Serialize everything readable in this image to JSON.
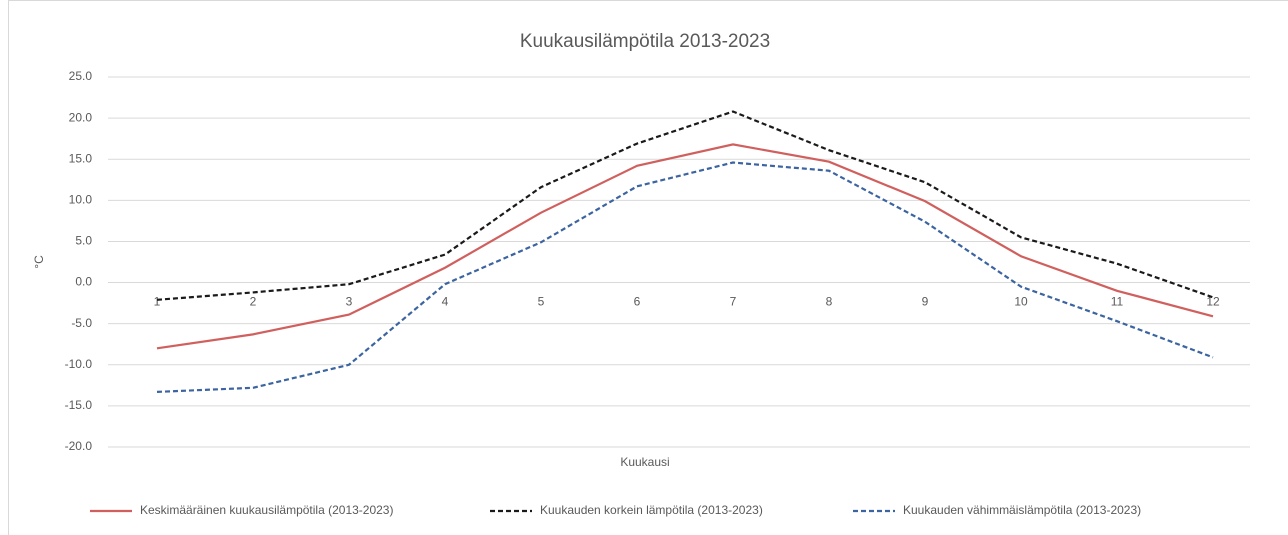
{
  "chart_data": {
    "type": "line",
    "title": "Kuukausilämpötila 2013-2023",
    "x_label": "Kuukausi",
    "y_label": "°C",
    "categories": [
      "1",
      "2",
      "3",
      "4",
      "5",
      "6",
      "7",
      "8",
      "9",
      "10",
      "11",
      "12"
    ],
    "series": [
      {
        "name": "Keskimääräinen kuukausilämpötila (2013-2023)",
        "color": "#d0605e",
        "dashed": false,
        "values": [
          -8.0,
          -6.3,
          -3.9,
          1.8,
          8.5,
          14.2,
          16.8,
          14.7,
          9.9,
          3.2,
          -1.0,
          -4.1
        ]
      },
      {
        "name": "Kuukauden korkein lämpötila (2013-2023)",
        "color": "#1a1a1a",
        "dashed": true,
        "values": [
          -2.1,
          -1.2,
          -0.2,
          3.4,
          11.6,
          16.9,
          20.8,
          16.1,
          12.2,
          5.5,
          2.3,
          -1.8
        ]
      },
      {
        "name": "Kuukauden vähimmäislämpötila (2013-2023)",
        "color": "#3b64a0",
        "dashed": true,
        "values": [
          -13.3,
          -12.8,
          -10.0,
          -0.2,
          4.9,
          11.7,
          14.6,
          13.6,
          7.4,
          -0.5,
          -4.7,
          -9.1
        ]
      }
    ],
    "ylim": [
      -20,
      25
    ],
    "yticks": [
      {
        "value": -20,
        "label": "-20.0"
      },
      {
        "value": -15,
        "label": "-15.0"
      },
      {
        "value": -10,
        "label": "-10.0"
      },
      {
        "value": -5,
        "label": "-5.0"
      },
      {
        "value": 0,
        "label": "0.0"
      },
      {
        "value": 5,
        "label": "5.0"
      },
      {
        "value": 10,
        "label": "10.0"
      },
      {
        "value": 15,
        "label": "15.0"
      },
      {
        "value": 20,
        "label": "20.0"
      },
      {
        "value": 25,
        "label": "25.0"
      }
    ],
    "grid": true,
    "legend": "bottom"
  }
}
